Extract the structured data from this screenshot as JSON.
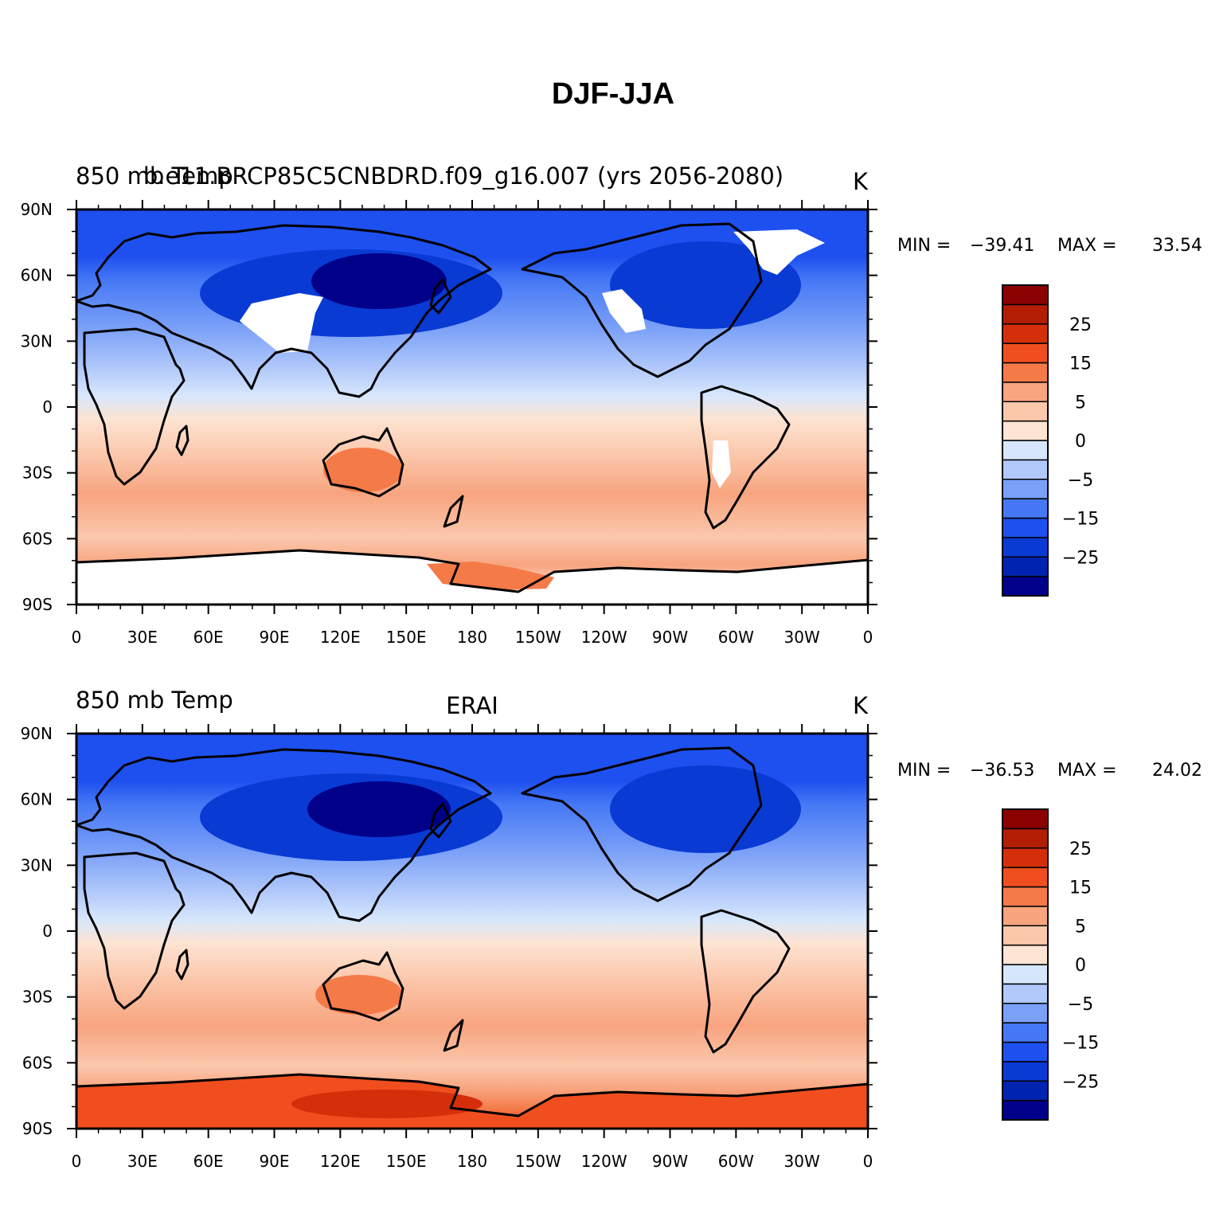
{
  "figure": {
    "title": "DJF-JJA",
    "lat_labels": [
      "90N",
      "60N",
      "30N",
      "0",
      "30S",
      "60S",
      "90S"
    ],
    "lon_labels": [
      "0",
      "30E",
      "60E",
      "90E",
      "120E",
      "150E",
      "180",
      "150W",
      "120W",
      "90W",
      "60W",
      "30W",
      "0"
    ]
  },
  "colorbar": {
    "levels": [
      "25",
      "15",
      "5",
      "0",
      "-5",
      "-15",
      "-25"
    ],
    "colors": [
      "#00008b",
      "#0024b0",
      "#0a3ad4",
      "#1e50f0",
      "#4678f5",
      "#7aa0f8",
      "#b0c8fa",
      "#d6e6fd",
      "#fde4d3",
      "#fbc8ac",
      "#f8a47f",
      "#f47a48",
      "#f04e1f",
      "#d42e0b",
      "#b21e04",
      "#8b0000"
    ]
  },
  "panels": [
    {
      "id": "model",
      "left_title": "850 mb Temp",
      "center_title": "b.e11.BRCP85C5CNBDRD.f09_g16.007 (yrs 2056-2080)",
      "units": "K",
      "min_label": "MIN =",
      "min_value": "-39.41",
      "max_label": "MAX =",
      "max_value": "33.54",
      "antarctica_fill": "#ffffff"
    },
    {
      "id": "obs",
      "left_title": "850 mb Temp",
      "center_title": "ERAI",
      "units": "K",
      "min_label": "MIN =",
      "min_value": "-36.53",
      "max_label": "MAX =",
      "max_value": "24.02",
      "antarctica_fill": "#f04e1f"
    }
  ]
}
